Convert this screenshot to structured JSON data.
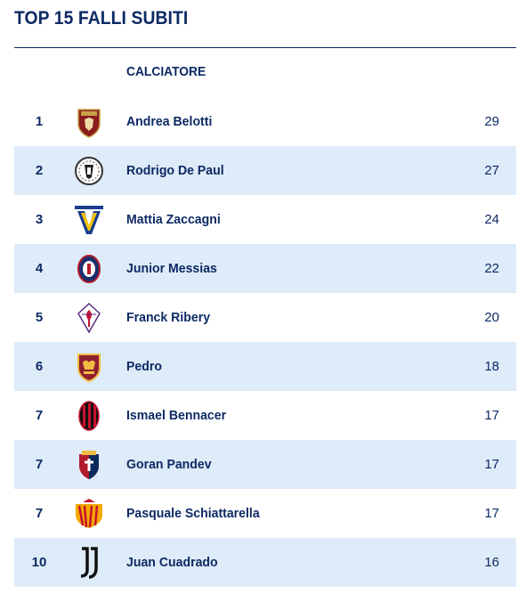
{
  "title": "TOP 15 FALLI SUBITI",
  "header": {
    "player_col": "CALCIATORE"
  },
  "rows": [
    {
      "rank": "1",
      "player": "Andrea Belotti",
      "value": "29",
      "crest": "torino-crest-icon"
    },
    {
      "rank": "2",
      "player": "Rodrigo De Paul",
      "value": "27",
      "crest": "udinese-crest-icon"
    },
    {
      "rank": "3",
      "player": "Mattia Zaccagni",
      "value": "24",
      "crest": "verona-crest-icon"
    },
    {
      "rank": "4",
      "player": "Junior Messias",
      "value": "22",
      "crest": "crotone-crest-icon"
    },
    {
      "rank": "5",
      "player": "Franck Ribery",
      "value": "20",
      "crest": "fiorentina-crest-icon"
    },
    {
      "rank": "6",
      "player": "Pedro",
      "value": "18",
      "crest": "roma-crest-icon"
    },
    {
      "rank": "7",
      "player": "Ismael Bennacer",
      "value": "17",
      "crest": "milan-crest-icon"
    },
    {
      "rank": "7",
      "player": "Goran Pandev",
      "value": "17",
      "crest": "genoa-crest-icon"
    },
    {
      "rank": "7",
      "player": "Pasquale Schiattarella",
      "value": "17",
      "crest": "benevento-crest-icon"
    },
    {
      "rank": "10",
      "player": "Juan Cuadrado",
      "value": "16",
      "crest": "juventus-crest-icon"
    }
  ],
  "colors": {
    "navy": "#0d2a64",
    "alt_row": "#deebf8"
  }
}
